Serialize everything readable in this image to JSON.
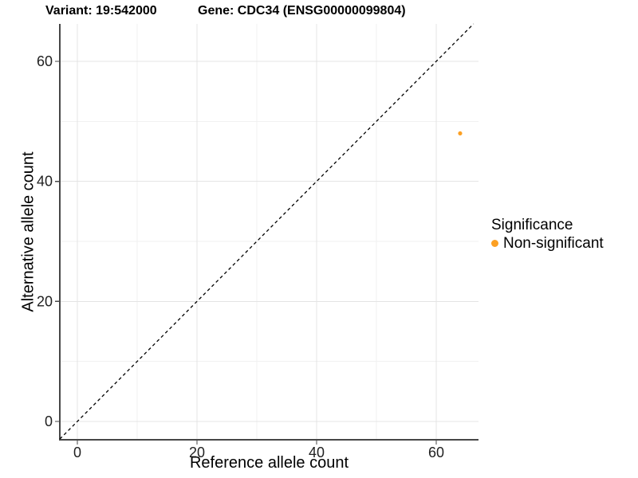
{
  "chart_data": {
    "type": "scatter",
    "titles": [
      "Variant: 19:542000",
      "Gene: CDC34 (ENSG00000099804)"
    ],
    "xlabel": "Reference allele count",
    "ylabel": "Alternative allele count",
    "x_major_breaks": [
      0,
      20,
      40,
      60
    ],
    "x_minor_breaks": [
      10,
      30,
      50
    ],
    "y_major_breaks": [
      0,
      20,
      40,
      60
    ],
    "y_minor_breaks": [
      10,
      30,
      50
    ],
    "xlim": [
      -2.93,
      67.07
    ],
    "ylim": [
      -3.05,
      66.24
    ],
    "grid": true,
    "points": [
      {
        "x": 64,
        "y": 48,
        "series": "Non-significant"
      }
    ],
    "reference_line": {
      "kind": "identity y=x",
      "style": "dashed",
      "color": "#000000"
    },
    "legend": {
      "title": "Significance",
      "position": "right",
      "entries": [
        {
          "label": "Non-significant",
          "color": "#FCA023"
        }
      ]
    },
    "colors": {
      "background": "#FFFFFF",
      "grid_major": "#E4E4E4",
      "grid_minor": "#F1F1F1",
      "axis_line": "#474747",
      "tick_text": "#1F1F1F"
    }
  }
}
